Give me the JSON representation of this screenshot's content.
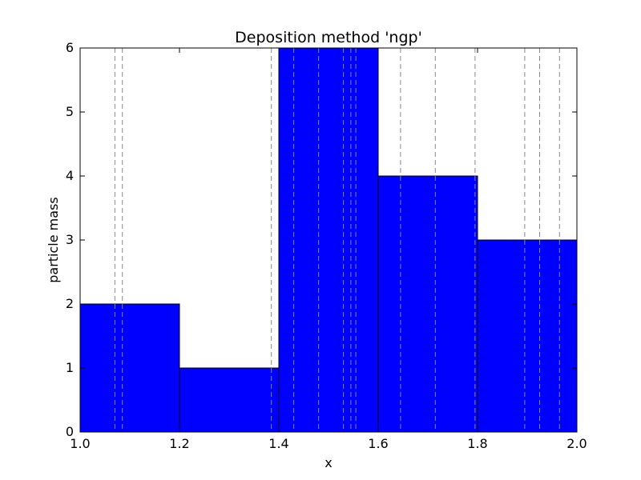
{
  "chart_data": {
    "type": "bar",
    "title": "Deposition method 'ngp'",
    "xlabel": "x",
    "ylabel": "particle mass",
    "xlim": [
      1.0,
      2.0
    ],
    "ylim": [
      0,
      6
    ],
    "bins": [
      {
        "x0": 1.0,
        "x1": 1.2,
        "value": 2
      },
      {
        "x0": 1.2,
        "x1": 1.4,
        "value": 1
      },
      {
        "x0": 1.4,
        "x1": 1.6,
        "value": 6
      },
      {
        "x0": 1.6,
        "x1": 1.8,
        "value": 4
      },
      {
        "x0": 1.8,
        "x1": 2.0,
        "value": 3
      }
    ],
    "particle_positions": [
      1.07,
      1.085,
      1.385,
      1.43,
      1.48,
      1.53,
      1.545,
      1.555,
      1.645,
      1.715,
      1.795,
      1.895,
      1.925,
      1.965
    ],
    "xticks": [
      "1.0",
      "1.2",
      "1.4",
      "1.6",
      "1.8",
      "2.0"
    ],
    "yticks": [
      "0",
      "1",
      "2",
      "3",
      "4",
      "5",
      "6"
    ],
    "bar_color": "#0000ff",
    "particle_line_color": "#888888",
    "grid": false
  }
}
